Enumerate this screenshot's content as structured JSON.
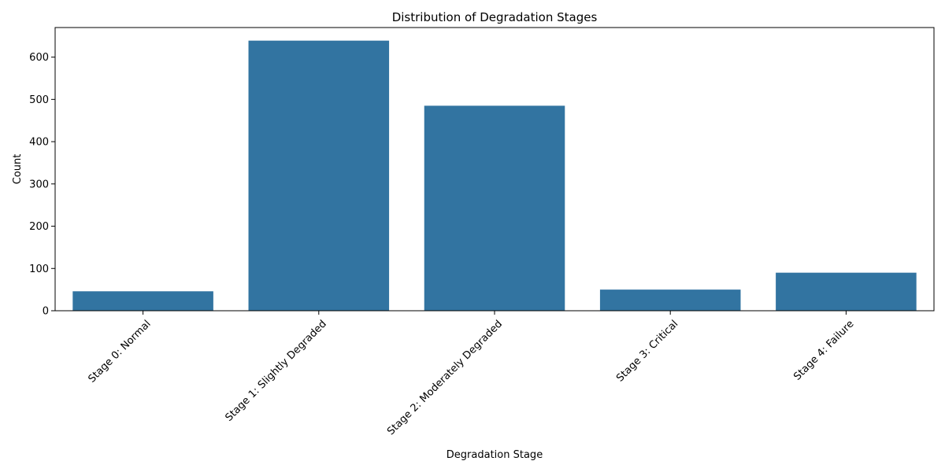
{
  "chart_data": {
    "type": "bar",
    "title": "Distribution of Degradation Stages",
    "xlabel": "Degradation Stage",
    "ylabel": "Count",
    "categories": [
      "Stage 0: Normal",
      "Stage 1: Slightly Degraded",
      "Stage 2: Moderately Degraded",
      "Stage 3: Critical",
      "Stage 4: Failure"
    ],
    "values": [
      46,
      639,
      485,
      50,
      90
    ],
    "ylim": [
      0,
      670
    ],
    "yticks": [
      0,
      100,
      200,
      300,
      400,
      500,
      600
    ],
    "bar_color": "#3274a1",
    "grid": false,
    "x_tick_rotation_deg": 45
  }
}
